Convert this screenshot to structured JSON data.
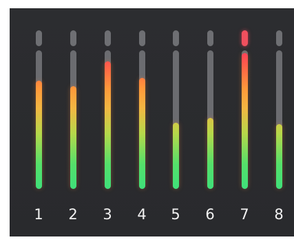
{
  "meter": {
    "channels": [
      {
        "label": "1",
        "level": 0.78,
        "clip": false
      },
      {
        "label": "2",
        "level": 0.74,
        "clip": false
      },
      {
        "label": "3",
        "level": 0.92,
        "clip": false
      },
      {
        "label": "4",
        "level": 0.8,
        "clip": false
      },
      {
        "label": "5",
        "level": 0.48,
        "clip": false
      },
      {
        "label": "6",
        "level": 0.51,
        "clip": false
      },
      {
        "label": "7",
        "level": 0.98,
        "clip": true
      },
      {
        "label": "8",
        "level": 0.47,
        "clip": false
      }
    ],
    "colors": {
      "background": "#2a2b2e",
      "track": "#6b6c70",
      "clip_off": "#6e6f73",
      "clip_on": "#f0505e",
      "low": "#3fe07a",
      "mid": "#f2b742",
      "high": "#ff3b5a",
      "label": "#f2f2f2"
    }
  }
}
